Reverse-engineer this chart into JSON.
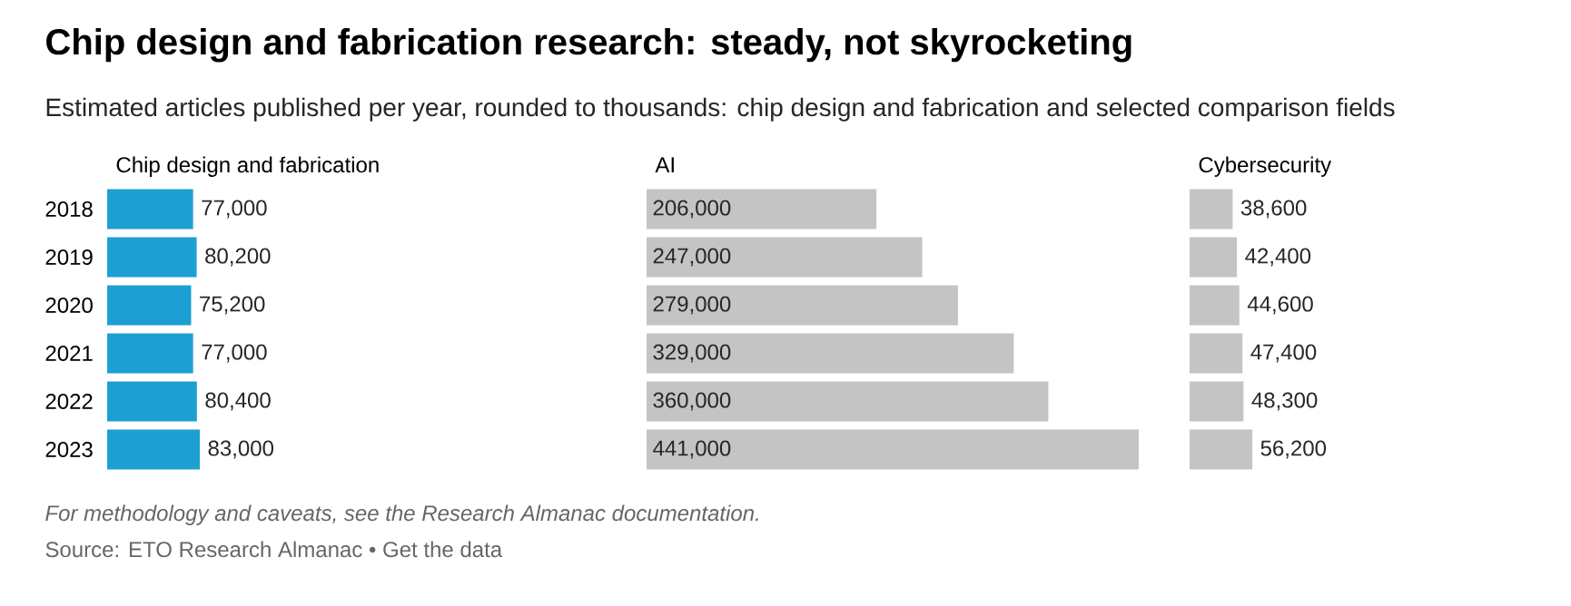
{
  "chart_data": [
    {
      "type": "other",
      "title": "Chip design and fabrication research: steady, not skyrocketing",
      "subtitle": "Estimated articles published per year, rounded to thousands: chip design and fabrication and selected comparison fields",
      "annotations": [
        "For methodology and caveats, see the Research Almanac documentation.",
        "Source: ETO Research Almanac • Get the data"
      ]
    },
    {
      "type": "bar",
      "orientation": "horizontal",
      "title": "Chip design and fabrication",
      "categories": [
        "2018",
        "2019",
        "2020",
        "2021",
        "2022",
        "2023"
      ],
      "values": [
        77000,
        80200,
        75200,
        77000,
        80400,
        83000
      ],
      "value_labels": [
        "77,000",
        "80,200",
        "75,200",
        "77,000",
        "80,400",
        "83,000"
      ],
      "color": "#1d9fd3",
      "tick_labels": "y"
    },
    {
      "type": "bar",
      "orientation": "horizontal",
      "title": "AI",
      "categories": [
        "2018",
        "2019",
        "2020",
        "2021",
        "2022",
        "2023"
      ],
      "values": [
        206000,
        247000,
        279000,
        329000,
        360000,
        441000
      ],
      "value_labels": [
        "206,000",
        "247,000",
        "279,000",
        "329,000",
        "360,000",
        "441,000"
      ],
      "color": "#c4c4c4",
      "tick_labels": false
    },
    {
      "type": "bar",
      "orientation": "horizontal",
      "title": "Cybersecurity",
      "categories": [
        "2018",
        "2019",
        "2020",
        "2021",
        "2022",
        "2023"
      ],
      "values": [
        38600,
        42400,
        44600,
        47400,
        48300,
        56200
      ],
      "value_labels": [
        "38,600",
        "42,400",
        "44,600",
        "47,400",
        "48,300",
        "56,200"
      ],
      "color": "#c4c4c4",
      "tick_labels": false
    }
  ]
}
